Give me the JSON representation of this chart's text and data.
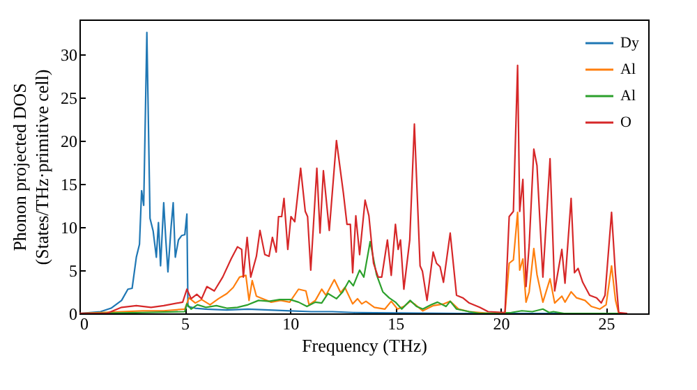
{
  "chart_data": {
    "type": "line",
    "xlabel": "Frequency (THz)",
    "ylabel": "Phonon projected DOS\n(States/THz·primitive cell)",
    "xlim": [
      0,
      27
    ],
    "ylim": [
      0,
      34
    ],
    "xticks": [
      0,
      5,
      10,
      15,
      20,
      25
    ],
    "yticks": [
      0,
      5,
      10,
      15,
      20,
      25,
      30
    ],
    "grid": false,
    "legend": "top right",
    "series": [
      {
        "name": "Dy",
        "color": "#1f77b4",
        "x": [
          0,
          1,
          1.5,
          2,
          2.3,
          2.5,
          2.7,
          2.85,
          2.95,
          3.05,
          3.2,
          3.35,
          3.5,
          3.65,
          3.75,
          3.85,
          4.0,
          4.1,
          4.2,
          4.35,
          4.45,
          4.55,
          4.7,
          4.85,
          5.0,
          5.1,
          5.15,
          5.5,
          6,
          7,
          8,
          9,
          10,
          11,
          12,
          13,
          15,
          18,
          20,
          22,
          24,
          25.7
        ],
        "values": [
          0,
          0.2,
          0.6,
          1.5,
          2.8,
          2.9,
          6.5,
          8,
          14.2,
          12.5,
          32.5,
          11,
          9.5,
          6.5,
          10.5,
          5.5,
          12.8,
          8.5,
          4.8,
          10,
          12.8,
          6.5,
          8.5,
          9,
          9.1,
          11.5,
          0.8,
          0.6,
          0.5,
          0.4,
          0.5,
          0.4,
          0.3,
          0.2,
          0.2,
          0.1,
          0.05,
          0,
          0,
          0,
          0,
          0
        ]
      },
      {
        "name": "Al",
        "color": "#ff7f0e",
        "x": [
          0,
          2,
          3,
          4,
          5,
          5.2,
          5.5,
          5.8,
          6.2,
          6.6,
          7.0,
          7.3,
          7.6,
          7.9,
          8.05,
          8.2,
          8.4,
          8.6,
          9.1,
          9.55,
          9.98,
          10.4,
          10.75,
          10.9,
          11.2,
          11.5,
          11.7,
          12.1,
          12.4,
          12.6,
          12.97,
          13.2,
          13.4,
          13.6,
          14.0,
          14.5,
          14.8,
          15.1,
          15.4,
          15.7,
          15.9,
          16.3,
          16.8,
          17.3,
          17.6,
          18,
          18.5,
          19,
          19.5,
          20.2,
          20.4,
          20.6,
          20.8,
          20.9,
          21.05,
          21.2,
          21.35,
          21.57,
          21.72,
          22.0,
          22.34,
          22.56,
          22.9,
          23.05,
          23.34,
          23.6,
          24.0,
          24.3,
          24.7,
          25.0,
          25.26,
          25.45,
          25.6,
          26
        ],
        "values": [
          0,
          0.2,
          0.3,
          0.3,
          0.5,
          1.8,
          1.2,
          1.6,
          1.0,
          1.7,
          2.3,
          3.0,
          4.2,
          4.4,
          1.5,
          3.8,
          2.0,
          1.8,
          1.3,
          1.5,
          1.3,
          2.8,
          2.6,
          1.0,
          1.5,
          2.8,
          2.1,
          3.9,
          2.4,
          3.0,
          1.1,
          1.7,
          1.1,
          1.4,
          0.7,
          0.5,
          1.4,
          0.5,
          0.8,
          1.4,
          1.1,
          0.3,
          0.9,
          1.1,
          1.4,
          0.5,
          0.2,
          0.1,
          0,
          0,
          5.8,
          6.2,
          11.7,
          5.0,
          6.3,
          1.3,
          2.5,
          7.5,
          4.5,
          1.3,
          4.0,
          1.2,
          2.0,
          1.3,
          2.5,
          1.8,
          1.5,
          0.8,
          0.5,
          1.0,
          5.5,
          1.5,
          0,
          0
        ]
      },
      {
        "name": "Al",
        "color": "#2ca02c",
        "x": [
          0,
          3,
          5,
          5.1,
          5.3,
          5.6,
          6,
          6.5,
          7,
          7.5,
          8,
          8.5,
          9,
          9.5,
          10,
          10.4,
          10.8,
          11.2,
          11.5,
          11.8,
          12.2,
          12.5,
          12.8,
          13.0,
          13.3,
          13.5,
          13.8,
          14.1,
          14.4,
          14.7,
          15.0,
          15.3,
          15.7,
          16.0,
          16.3,
          16.7,
          17.0,
          17.4,
          17.6,
          17.9,
          18.5,
          19,
          20.5,
          21,
          21.5,
          22,
          22.3,
          22.5,
          23,
          25.6,
          26
        ],
        "values": [
          0,
          0.1,
          0.2,
          1.1,
          0.5,
          1.0,
          0.7,
          0.9,
          0.6,
          0.7,
          1.0,
          1.5,
          1.4,
          1.6,
          1.6,
          1.3,
          0.8,
          1.3,
          1.2,
          2.3,
          1.7,
          2.5,
          3.8,
          3.2,
          5.0,
          4.2,
          8.3,
          4.5,
          2.5,
          1.8,
          1.3,
          0.5,
          1.5,
          0.8,
          0.5,
          1.0,
          1.3,
          0.8,
          1.4,
          0.5,
          0.2,
          0,
          0.1,
          0.3,
          0.2,
          0.5,
          0.1,
          0.2,
          0,
          0,
          0
        ]
      },
      {
        "name": "O",
        "color": "#d62728",
        "x": [
          0,
          1.3,
          2.0,
          2.7,
          3.4,
          4.0,
          4.9,
          5.1,
          5.3,
          5.57,
          5.8,
          6.05,
          6.4,
          6.8,
          7.2,
          7.5,
          7.7,
          7.78,
          7.96,
          8.13,
          8.4,
          8.57,
          8.8,
          9.0,
          9.16,
          9.34,
          9.45,
          9.6,
          9.71,
          9.89,
          10.04,
          10.22,
          10.5,
          10.72,
          10.83,
          10.98,
          11.27,
          11.42,
          11.58,
          11.86,
          12.2,
          12.53,
          12.7,
          12.86,
          12.97,
          13.12,
          13.3,
          13.56,
          13.74,
          13.96,
          14.18,
          14.35,
          14.62,
          14.8,
          15.0,
          15.13,
          15.24,
          15.4,
          15.68,
          15.9,
          16.17,
          16.28,
          16.5,
          16.79,
          16.95,
          17.12,
          17.28,
          17.6,
          17.9,
          18.2,
          18.5,
          19,
          19.4,
          20.2,
          20.4,
          20.6,
          20.8,
          20.9,
          21.05,
          21.2,
          21.35,
          21.57,
          21.72,
          22.0,
          22.34,
          22.56,
          22.9,
          23.05,
          23.34,
          23.5,
          23.67,
          23.89,
          24.22,
          24.55,
          24.77,
          24.95,
          25.26,
          25.44,
          25.6,
          26
        ],
        "values": [
          0,
          0,
          0.7,
          0.9,
          0.7,
          0.9,
          1.3,
          2.8,
          1.7,
          2.2,
          1.7,
          3.1,
          2.6,
          4.2,
          6.3,
          7.7,
          7.4,
          4.2,
          8.8,
          4.2,
          6.6,
          9.6,
          6.8,
          6.6,
          8.8,
          7.1,
          11.2,
          11.2,
          13.3,
          7.4,
          11.2,
          10.6,
          16.8,
          11.8,
          11.2,
          5.0,
          16.8,
          9.3,
          16.5,
          9.6,
          20.0,
          13.9,
          10.3,
          10.3,
          4.7,
          11.3,
          6.8,
          13.1,
          11.3,
          5.8,
          4.2,
          4.2,
          8.5,
          4.4,
          10.3,
          7.4,
          8.5,
          2.8,
          8.5,
          21.9,
          5.5,
          4.9,
          1.5,
          7.1,
          5.8,
          5.4,
          3.6,
          9.3,
          2.1,
          1.8,
          1.2,
          0.7,
          0.2,
          0.1,
          11.2,
          11.8,
          28.7,
          11.8,
          15.5,
          3.1,
          7.9,
          19.0,
          17.1,
          4.2,
          17.9,
          2.6,
          7.4,
          3.5,
          13.3,
          4.7,
          5.2,
          3.6,
          2.1,
          1.8,
          1.2,
          2.1,
          11.7,
          4.7,
          0.1,
          0
        ]
      }
    ]
  }
}
